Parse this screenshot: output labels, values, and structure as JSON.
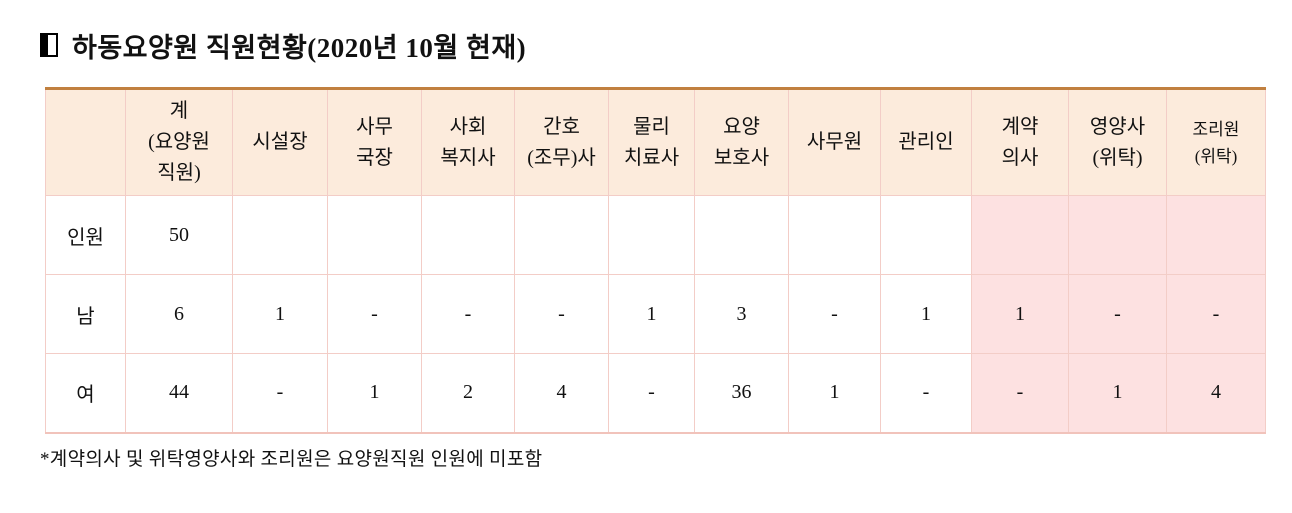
{
  "page": {
    "title": "하동요양원 직원현황(2020년 10월 현재)",
    "title_bullet_icon": "left-half-filled-square",
    "footnote": "*계약의사 및 위탁영양사와 조리원은 요양원직원 인원에 미포함"
  },
  "table": {
    "corner_label": "",
    "columns": [
      {
        "label": "계\n(요양원\n직원)",
        "highlight": false
      },
      {
        "label": "시설장",
        "highlight": false
      },
      {
        "label": "사무\n국장",
        "highlight": false
      },
      {
        "label": "사회\n복지사",
        "highlight": false
      },
      {
        "label": "간호\n(조무)사",
        "highlight": false
      },
      {
        "label": "물리\n치료사",
        "highlight": false
      },
      {
        "label": "요양\n보호사",
        "highlight": false
      },
      {
        "label": "사무원",
        "highlight": false
      },
      {
        "label": "관리인",
        "highlight": false
      },
      {
        "label": "계약\n의사",
        "highlight": true
      },
      {
        "label": "영양사\n(위탁)",
        "highlight": true
      },
      {
        "label": "조리원\n(위탁)",
        "highlight": true
      }
    ],
    "rows": [
      {
        "label": "인원",
        "cells": [
          "50",
          "",
          "",
          "",
          "",
          "",
          "",
          "",
          "",
          "",
          "",
          ""
        ]
      },
      {
        "label": "남",
        "cells": [
          "6",
          "1",
          "-",
          "-",
          "-",
          "1",
          "3",
          "-",
          "1",
          "1",
          "-",
          "-"
        ]
      },
      {
        "label": "여",
        "cells": [
          "44",
          "-",
          "1",
          "2",
          "4",
          "-",
          "36",
          "1",
          "-",
          "-",
          "1",
          "4"
        ]
      }
    ]
  },
  "colors": {
    "header_bg": "#fcebdc",
    "highlight_bg": "#fde1e1",
    "grid_border": "#f3cdc7",
    "top_border": "#c1803f",
    "bottom_border": "#f1c3bb",
    "text": "#111111"
  }
}
